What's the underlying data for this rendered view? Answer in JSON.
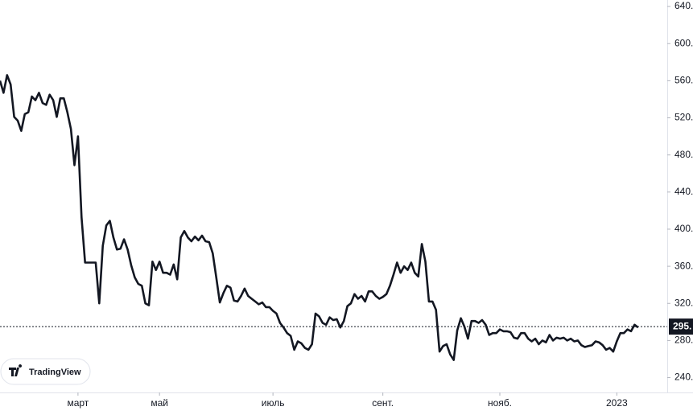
{
  "chart_data": {
    "type": "line",
    "series": [
      {
        "color": "#131722",
        "values": [
          560,
          547,
          566,
          556,
          521,
          517,
          506,
          524,
          526,
          543,
          539,
          547,
          536,
          534,
          545,
          539,
          521,
          541,
          541,
          526,
          508,
          469,
          500,
          413,
          364,
          364,
          364,
          364,
          320,
          382,
          404,
          409,
          391,
          378,
          379,
          389,
          378,
          361,
          348,
          341,
          339,
          320,
          318,
          365,
          356,
          365,
          353,
          353,
          351,
          362,
          346,
          391,
          398,
          391,
          387,
          392,
          388,
          393,
          387,
          386,
          374,
          348,
          321,
          331,
          339,
          337,
          323,
          322,
          328,
          336,
          328,
          325,
          322,
          319,
          321,
          316,
          316,
          312,
          309,
          299,
          294,
          288,
          285,
          270,
          279,
          277,
          272,
          270,
          276,
          309,
          306,
          299,
          297,
          305,
          302,
          303,
          294,
          301,
          317,
          320,
          330,
          325,
          328,
          322,
          333,
          333,
          328,
          325,
          327,
          330,
          339,
          351,
          364,
          353,
          360,
          356,
          364,
          353,
          349,
          384,
          365,
          322,
          322,
          313,
          268,
          274,
          276,
          265,
          259,
          291,
          304,
          295,
          282,
          301,
          301,
          299,
          302,
          297,
          286,
          288,
          288,
          292,
          290,
          290,
          289,
          283,
          282,
          288,
          288,
          282,
          279,
          282,
          276,
          280,
          278,
          286,
          280,
          283,
          282,
          283,
          280,
          282,
          279,
          280,
          275,
          273,
          274,
          275,
          279,
          278,
          275,
          270,
          272,
          268,
          279,
          288,
          288,
          292,
          290,
          297,
          294
        ]
      }
    ],
    "xlim": [
      0,
      188
    ],
    "xticks": [
      {
        "value": 22,
        "label": "март"
      },
      {
        "value": 45,
        "label": "май"
      },
      {
        "value": 77,
        "label": "июль"
      },
      {
        "value": 108,
        "label": "сент."
      },
      {
        "value": 141,
        "label": "нояб."
      },
      {
        "value": 174,
        "label": "2023"
      }
    ],
    "ylim": [
      224,
      647
    ],
    "yticks": [
      {
        "value": 640,
        "label": "640."
      },
      {
        "value": 600,
        "label": "600."
      },
      {
        "value": 560,
        "label": "560."
      },
      {
        "value": 520,
        "label": "520."
      },
      {
        "value": 480,
        "label": "480."
      },
      {
        "value": 440,
        "label": "440."
      },
      {
        "value": 400,
        "label": "400."
      },
      {
        "value": 360,
        "label": "360."
      },
      {
        "value": 320,
        "label": "320."
      },
      {
        "value": 280,
        "label": "280."
      },
      {
        "value": 240,
        "label": "240."
      }
    ],
    "last_price": {
      "value": 295,
      "label": "295."
    },
    "watermark": "TradingView"
  }
}
